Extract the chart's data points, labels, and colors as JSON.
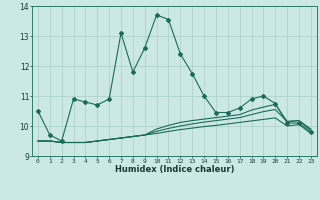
{
  "xlabel": "Humidex (Indice chaleur)",
  "background_color": "#cce8e4",
  "line_color": "#1a6b5a",
  "grid_color": "#aacfc9",
  "xlim": [
    -0.5,
    23.5
  ],
  "ylim": [
    9.0,
    14.0
  ],
  "yticks": [
    9,
    10,
    11,
    12,
    13,
    14
  ],
  "xticks": [
    0,
    1,
    2,
    3,
    4,
    5,
    6,
    7,
    8,
    9,
    10,
    11,
    12,
    13,
    14,
    15,
    16,
    17,
    18,
    19,
    20,
    21,
    22,
    23
  ],
  "series1": [
    10.5,
    9.7,
    9.5,
    10.9,
    10.8,
    10.7,
    10.9,
    13.1,
    11.8,
    12.6,
    13.7,
    13.55,
    12.4,
    11.75,
    11.0,
    10.45,
    10.45,
    10.6,
    10.9,
    11.0,
    10.75,
    10.1,
    10.1,
    9.8
  ],
  "series2": [
    9.5,
    9.5,
    9.45,
    9.45,
    9.45,
    9.5,
    9.55,
    9.6,
    9.65,
    9.7,
    9.75,
    9.82,
    9.88,
    9.93,
    9.98,
    10.02,
    10.07,
    10.12,
    10.17,
    10.22,
    10.27,
    10.0,
    10.05,
    9.75
  ],
  "series3": [
    9.5,
    9.5,
    9.45,
    9.45,
    9.45,
    9.5,
    9.55,
    9.6,
    9.65,
    9.7,
    9.82,
    9.92,
    10.0,
    10.07,
    10.13,
    10.18,
    10.23,
    10.28,
    10.38,
    10.48,
    10.55,
    10.15,
    10.18,
    9.85
  ],
  "series4": [
    9.5,
    9.5,
    9.45,
    9.45,
    9.45,
    9.5,
    9.55,
    9.6,
    9.65,
    9.7,
    9.9,
    10.02,
    10.12,
    10.18,
    10.23,
    10.28,
    10.33,
    10.38,
    10.53,
    10.63,
    10.72,
    10.15,
    10.18,
    9.9
  ]
}
